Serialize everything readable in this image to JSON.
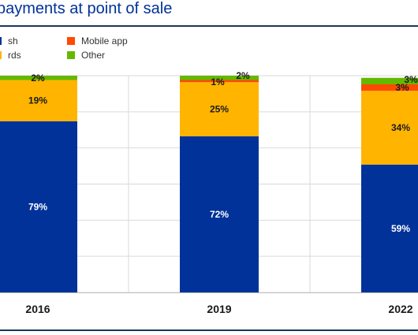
{
  "title": "payments at point of sale",
  "colors": {
    "cash": "#003299",
    "cards": "#ffb400",
    "mobile": "#ff4b00",
    "other": "#65b800",
    "rule": "#17375e",
    "grid": "#d9d9d9"
  },
  "legend": [
    {
      "label": "sh",
      "color": "#003299"
    },
    {
      "label": "rds",
      "color": "#ffb400"
    },
    {
      "label": "Mobile app",
      "color": "#ff4b00"
    },
    {
      "label": "Other",
      "color": "#65b800"
    }
  ],
  "chart_data": {
    "type": "bar",
    "stacked": true,
    "categories": [
      "2016",
      "2019",
      "2022"
    ],
    "series": [
      {
        "name": "sh",
        "values": [
          79,
          72,
          59
        ]
      },
      {
        "name": "rds",
        "values": [
          19,
          25,
          34
        ]
      },
      {
        "name": "Mobile app",
        "values": [
          0,
          1,
          3
        ]
      },
      {
        "name": "Other",
        "values": [
          2,
          2,
          3
        ]
      }
    ],
    "labels": [
      [
        "79%",
        "19%",
        "",
        "2%"
      ],
      [
        "72%",
        "25%",
        "1%",
        "2%"
      ],
      [
        "59%",
        "34%",
        "3%",
        "3%"
      ]
    ],
    "ylim": [
      0,
      100
    ],
    "grid": true
  }
}
